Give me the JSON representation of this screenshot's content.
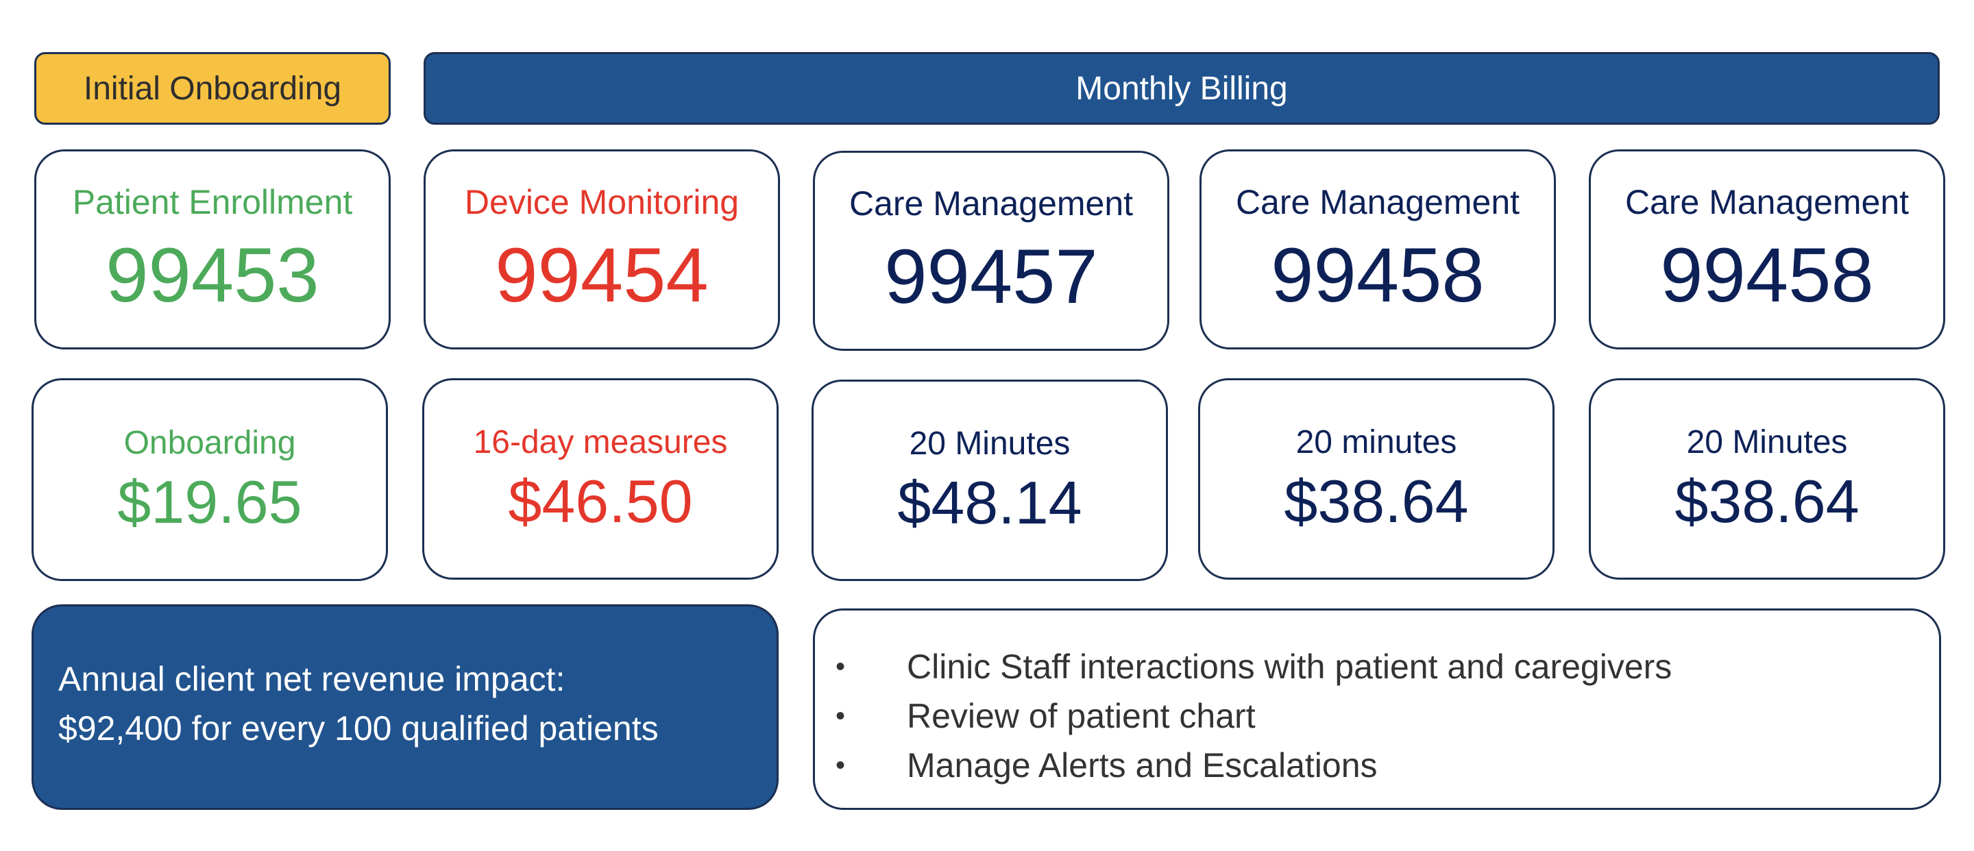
{
  "headers": {
    "onboarding": "Initial Onboarding",
    "billing": "Monthly Billing"
  },
  "codes": [
    {
      "label": "Patient Enrollment",
      "code": "99453",
      "color": "#4caa5a"
    },
    {
      "label": "Device Monitoring",
      "code": "99454",
      "color": "#e4372b"
    },
    {
      "label": "Care Management",
      "code": "99457",
      "color": "#0d2157"
    },
    {
      "label": "Care Management",
      "code": "99458",
      "color": "#0d2157"
    },
    {
      "label": "Care Management",
      "code": "99458",
      "color": "#0d2157"
    }
  ],
  "fees": [
    {
      "label": "Onboarding",
      "amount": "$19.65"
    },
    {
      "label": "16-day measures",
      "amount": "$46.50"
    },
    {
      "label": "20 Minutes",
      "amount": "$48.14"
    },
    {
      "label": "20 minutes",
      "amount": "$38.64"
    },
    {
      "label": "20 Minutes",
      "amount": "$38.64"
    }
  ],
  "revenue": {
    "line1": "Annual client net revenue impact:",
    "line2": "$92,400 for every 100 qualified patients"
  },
  "duties": {
    "bullet": "•",
    "items": [
      "Clinic Staff interactions with patient and caregivers",
      "Review of patient chart",
      "Manage Alerts and Escalations"
    ]
  },
  "colors": {
    "onboarding_header": "#f7c142",
    "billing_header": "#21548f",
    "border": "#1c2f52",
    "green": "#4caa5a",
    "red": "#e4372b",
    "navy": "#0d2157"
  }
}
